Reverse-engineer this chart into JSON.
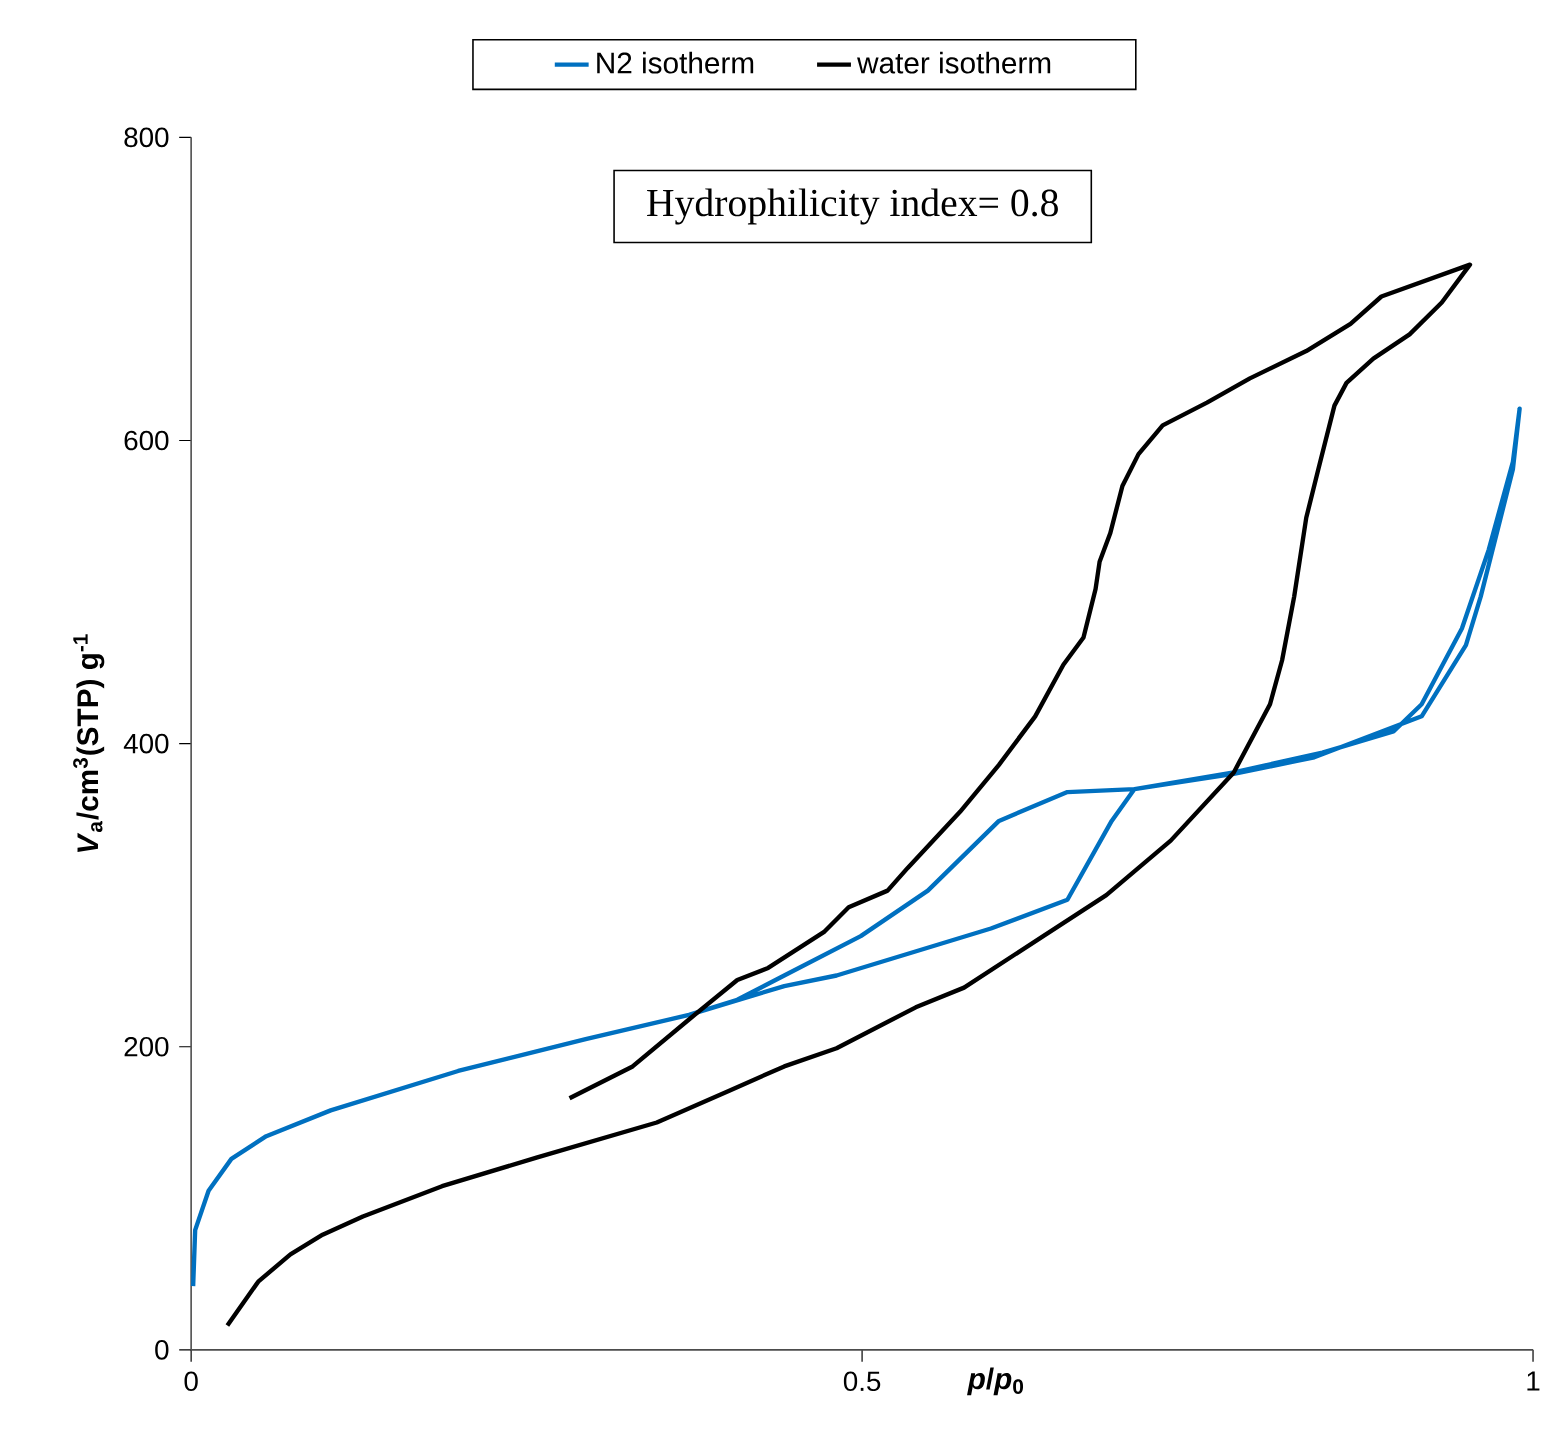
{
  "chart_data": {
    "type": "line",
    "xlabel": "*p*/*p*$_{0}$",
    "ylabel": "*V*$_{a}$/cm$^{3}$(STP) g$^{-1}$",
    "annotations": [
      "Hydrophilicity index= 0.8"
    ],
    "xlim": [
      0,
      1
    ],
    "ylim": [
      0,
      800
    ],
    "xticks": [
      0,
      0.5,
      1
    ],
    "yticks": [
      0,
      200,
      400,
      600,
      800
    ],
    "grid": false,
    "legend": "top",
    "marker": "none",
    "line_style": "solid",
    "series": [
      {
        "name": "N2 isotherm",
        "color": "#0070c0",
        "x": [
          0.0015,
          0.003,
          0.013,
          0.03,
          0.056,
          0.104,
          0.199,
          0.294,
          0.371,
          0.442,
          0.481,
          0.596,
          0.653,
          0.686,
          0.703,
          0.777,
          0.843,
          0.896,
          0.917,
          0.947,
          0.967,
          0.985,
          0.99,
          0.985,
          0.961,
          0.95,
          0.917,
          0.837,
          0.777,
          0.703,
          0.653,
          0.602,
          0.549,
          0.499,
          0.442,
          0.407,
          0.371
        ],
        "values": [
          42,
          79,
          105,
          126,
          141,
          158,
          184,
          205,
          221,
          240,
          247,
          278,
          297,
          349,
          370,
          381,
          394,
          408,
          426,
          476,
          528,
          586,
          621,
          581,
          497,
          465,
          418,
          391,
          380,
          370,
          368,
          349,
          303,
          273,
          247,
          231,
          221
        ]
      },
      {
        "name": "water isotherm",
        "color": "#000000",
        "x": [
          0.027,
          0.05,
          0.074,
          0.098,
          0.128,
          0.187,
          0.258,
          0.347,
          0.401,
          0.442,
          0.481,
          0.54,
          0.576,
          0.635,
          0.682,
          0.73,
          0.777,
          0.804,
          0.813,
          0.822,
          0.831,
          0.84,
          0.852,
          0.861,
          0.881,
          0.908,
          0.932,
          0.953,
          0.887,
          0.864,
          0.831,
          0.789,
          0.757,
          0.724,
          0.706,
          0.694,
          0.685,
          0.677,
          0.674,
          0.665,
          0.65,
          0.629,
          0.602,
          0.573,
          0.534,
          0.519,
          0.49,
          0.472,
          0.43,
          0.407,
          0.371,
          0.329,
          0.282
        ],
        "values": [
          16,
          45,
          63,
          76,
          88,
          108,
          127,
          150,
          171,
          187,
          199,
          226,
          239,
          273,
          300,
          336,
          381,
          426,
          455,
          497,
          549,
          581,
          623,
          638,
          654,
          670,
          691,
          716,
          695,
          677,
          659,
          641,
          625,
          610,
          591,
          570,
          539,
          520,
          502,
          470,
          452,
          418,
          386,
          355,
          318,
          303,
          292,
          276,
          252,
          244,
          218,
          187,
          166
        ]
      }
    ]
  }
}
